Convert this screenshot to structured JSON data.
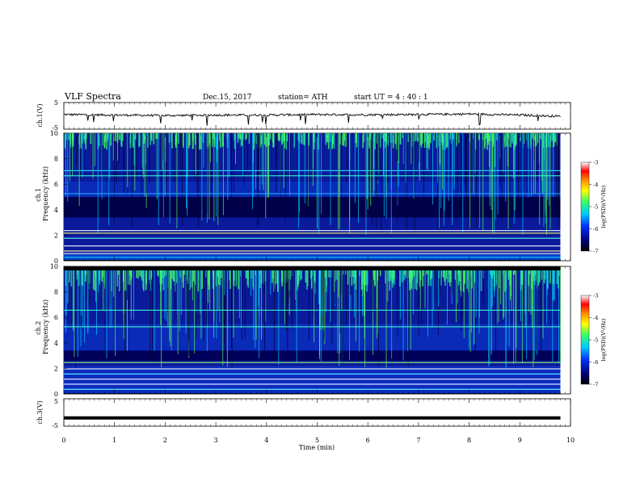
{
  "header": {
    "title": "VLF  Spectra",
    "date": "Dec.15, 2017",
    "station": "station= ATH",
    "start": "start  UT  =   4  : 40 : 1"
  },
  "chart_data": [
    {
      "type": "line",
      "panel": "ch1-waveform",
      "ylabel": "ch.1(V)",
      "ylim": [
        -5,
        5
      ],
      "y_ticks": [
        "5",
        "-5"
      ],
      "x": [
        0,
        1,
        2,
        3,
        4,
        5,
        6,
        7,
        8,
        9,
        9.8
      ],
      "values": [
        0.5,
        0.3,
        0.1,
        0.3,
        0.3,
        0.5,
        0.4,
        0.5,
        0.7,
        0.3,
        -0.2
      ],
      "note": "noisy waveform near 0 V with small negative spikes"
    },
    {
      "type": "heatmap",
      "panel": "ch1-spectrogram",
      "ylabel": "ch.1\nFrequency  (kHz)",
      "ylim": [
        0,
        10
      ],
      "y_ticks": [
        "0",
        "2",
        "4",
        "6",
        "8",
        "10"
      ],
      "colorbar": {
        "label": "log(PSD)(V²/Hz)",
        "range": [
          -7,
          -3
        ],
        "ticks": [
          "-3",
          "-4",
          "-5",
          "-6",
          "-7"
        ],
        "colors": [
          "#000000",
          "#00007a",
          "#0033ff",
          "#00ccff",
          "#33ff66",
          "#ffff00",
          "#ff8800",
          "#ff0000",
          "#ffffff"
        ]
      }
    },
    {
      "type": "heatmap",
      "panel": "ch2-spectrogram",
      "ylabel": "ch.2\nFrequency  (kHz)",
      "ylim": [
        0,
        10
      ],
      "y_ticks": [
        "0",
        "2",
        "4",
        "6",
        "8",
        "10"
      ],
      "colorbar": {
        "label": "log(PSD)(V²/Hz)",
        "range": [
          -7,
          -3
        ],
        "ticks": [
          "-3",
          "-4",
          "-5",
          "-6",
          "-7"
        ],
        "colors": [
          "#000000",
          "#00007a",
          "#0033ff",
          "#00ccff",
          "#33ff66",
          "#ffff00",
          "#ff8800",
          "#ff0000",
          "#ffffff"
        ]
      }
    },
    {
      "type": "line",
      "panel": "ch3-waveform",
      "ylabel": "ch.3(V)",
      "ylim": [
        -5,
        5
      ],
      "y_ticks": [
        "5",
        "-5"
      ],
      "x": [
        0,
        9.8
      ],
      "values": [
        -2,
        -2
      ],
      "note": "flat thick trace"
    }
  ],
  "x_axis": {
    "label": "Time  (min)",
    "range": [
      0,
      10
    ],
    "ticks": [
      "0",
      "1",
      "2",
      "3",
      "4",
      "5",
      "6",
      "7",
      "8",
      "9",
      "10"
    ]
  },
  "colors": {
    "spectrum_background": "#0a1a9a",
    "trace": "#000000"
  }
}
